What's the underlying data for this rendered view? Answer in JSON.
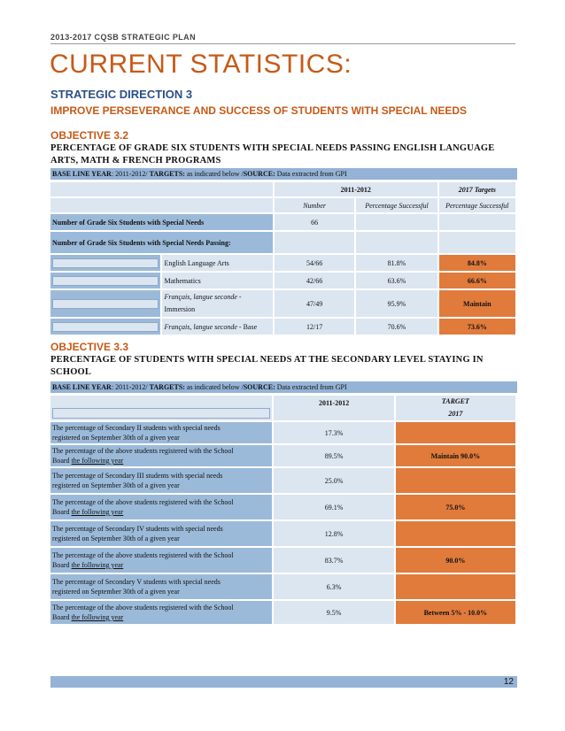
{
  "header": {
    "plan_title": "2013-2017 CQSB STRATEGIC PLAN"
  },
  "title": "CURRENT STATISTICS:",
  "strategic_direction": {
    "title": "STRATEGIC DIRECTION 3",
    "subtitle": "IMPROVE PERSEVERANCE AND SUCCESS OF STUDENTS WITH SPECIAL NEEDS"
  },
  "baseline": {
    "label": "BASE LINE YEAR",
    "year": ": 2011-2012/ ",
    "targets_label": "TARGETS:",
    "targets_text": " as indicated below /",
    "source_label": "SOURCE:",
    "source_text": " Data extracted from GPI"
  },
  "obj32": {
    "title": "OBJECTIVE 3.2",
    "desc_line1": "PERCENTAGE OF GRADE SIX STUDENTS WITH SPECIAL NEEDS PASSING ENGLISH LANGUAGE",
    "desc_line2": "ARTS, MATH & FRENCH PROGRAMS",
    "col_year": "2011-2012",
    "col_target": "2017 Targets",
    "col_number": "Number",
    "col_pct": "Percentage Successful",
    "col_pct_target": "Percentage Successful",
    "row_total_label": "Number of Grade Six Students with Special Needs",
    "row_total_value": "66",
    "row_passing_label": "Number of Grade Six Students with Special Needs Passing:",
    "subjects": [
      {
        "name": "English Language Arts",
        "number": "54/66",
        "pct": "81.8%",
        "target": "84.8%"
      },
      {
        "name": "Mathematics",
        "number": "42/66",
        "pct": "63.6%",
        "target": "66.6%"
      },
      {
        "name_a": "Français, langue seconde",
        "name_b": " -",
        "name_c": "Immersion",
        "number": "47/49",
        "pct": "95.9%",
        "target": "Maintain"
      },
      {
        "name_a": "Français, langue seconde",
        "name_b": " - Base",
        "number": "12/17",
        "pct": "70.6%",
        "target": "73.6%"
      }
    ]
  },
  "obj33": {
    "title": "OBJECTIVE 3.3",
    "desc_line1": "PERCENTAGE OF STUDENTS WITH SPECIAL NEEDS AT THE SECONDARY LEVEL STAYING IN",
    "desc_line2": "SCHOOL",
    "col_year": "2011-2012",
    "col_target_a": "TARGET",
    "col_target_b": "2017",
    "rows": [
      {
        "l1": "The percentage of Secondary II students with special needs",
        "l2": "registered on September 30th of a given year",
        "value": "17.3%",
        "target": ""
      },
      {
        "l1": "The percentage of the above  students registered  with the School",
        "l2a": "Board ",
        "l2b": "the following year",
        "value": "89.5%",
        "target": "Maintain 90.0%"
      },
      {
        "l1": "The percentage of Secondary III students with special needs",
        "l2": "registered on September 30th of a given year",
        "value": "25.0%",
        "target": ""
      },
      {
        "l1": "The percentage of the above  students registered  with the School",
        "l2a": "Board ",
        "l2b": "the following year",
        "value": "69.1%",
        "target": "75.0%"
      },
      {
        "l1": "The percentage of Secondary IV students with special needs",
        "l2": "registered on September 30th of a given year",
        "value": "12.8%",
        "target": ""
      },
      {
        "l1": "The percentage of the above  students registered  with the School",
        "l2a": "Board ",
        "l2b": "the following year",
        "value": "83.7%",
        "target": "90.0%"
      },
      {
        "l1": "The percentage of Secondary V students with special needs",
        "l2": "registered on September 30th of a given year",
        "value": "6.3%",
        "target": ""
      },
      {
        "l1": "The percentage of the above  students registered  with the School",
        "l2a": "Board ",
        "l2b": "the following year",
        "value": "9.5%",
        "target": "Between 5% - 10.0%"
      }
    ]
  },
  "footer": {
    "page_number": "12"
  }
}
